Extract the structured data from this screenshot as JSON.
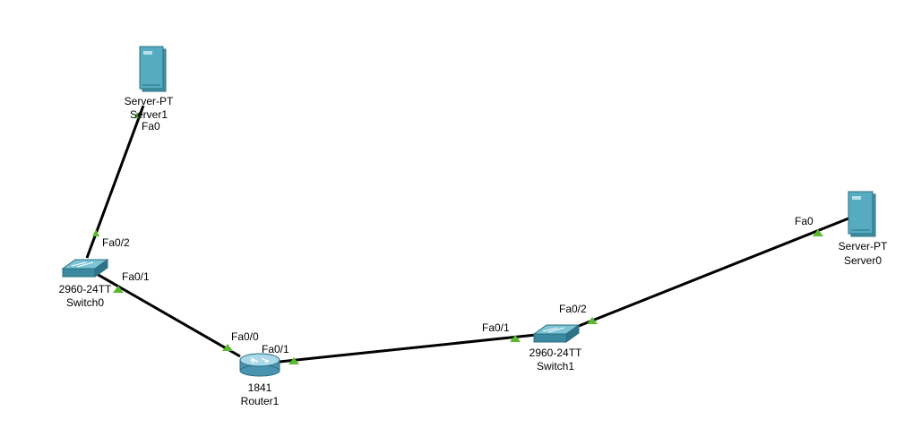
{
  "devices": {
    "server1": {
      "model": "Server-PT",
      "name": "Server1",
      "color": "#3f93a6"
    },
    "server0": {
      "model": "Server-PT",
      "name": "Server0",
      "color": "#3f93a6"
    },
    "switch0": {
      "model": "2960-24TT",
      "name": "Switch0",
      "color": "#3b8aa0"
    },
    "switch1": {
      "model": "2960-24TT",
      "name": "Switch1",
      "color": "#3b8aa0"
    },
    "router1": {
      "model": "1841",
      "name": "Router1",
      "color": "#4a93b0"
    }
  },
  "ports": {
    "server1_fa0": "Fa0",
    "switch0_fa02": "Fa0/2",
    "switch0_fa01": "Fa0/1",
    "router1_fa00": "Fa0/0",
    "router1_fa01": "Fa0/1",
    "switch1_fa01": "Fa0/1",
    "switch1_fa02": "Fa0/2",
    "server0_fa0": "Fa0"
  },
  "link_status_color": "#5cb82e",
  "link_color": "#000000"
}
